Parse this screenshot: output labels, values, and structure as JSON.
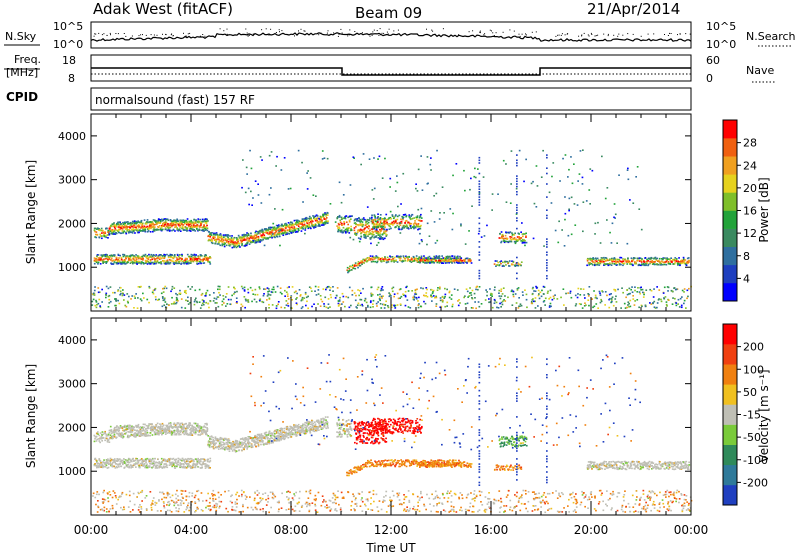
{
  "header": {
    "station": "Adak West (fitACF)",
    "beam": "Beam 09",
    "date": "21/Apr/2014"
  },
  "top_panels": {
    "nsky_label": "N.Sky",
    "nsearch_label": "N.Search",
    "noise_ticks": [
      "10^5",
      "10^0"
    ],
    "freq_label_1": "Freq.",
    "freq_label_2": "[MHz]",
    "freq_ticks": [
      "18",
      "8"
    ],
    "nave_label": "Nave",
    "nave_ticks": [
      "60",
      "0"
    ],
    "cpid_label": "CPID",
    "cpid_text": "normalsound (fast) 157 RF"
  },
  "chart_data": [
    {
      "type": "heatmap",
      "name": "power",
      "ylabel": "Slant Range [km]",
      "xlabel": "",
      "xlim": [
        0,
        24
      ],
      "ylim": [
        0,
        4500
      ],
      "yticks": [
        "4000",
        "3000",
        "2000",
        "1000"
      ],
      "colorbar": {
        "label": "Power [dB]",
        "ticks": [
          "28",
          "24",
          "20",
          "16",
          "12",
          "8",
          "4"
        ],
        "colors": [
          "#0000ff",
          "#1e3fbf",
          "#2f6f9f",
          "#3a8a60",
          "#22a33a",
          "#7fbf2a",
          "#e6d21e",
          "#f0a020",
          "#f06010",
          "#ff0000"
        ]
      }
    },
    {
      "type": "heatmap",
      "name": "velocity",
      "ylabel": "Slant Range [km]",
      "xlabel": "Time UT",
      "xlim": [
        0,
        24
      ],
      "ylim": [
        0,
        4500
      ],
      "yticks": [
        "4000",
        "3000",
        "2000",
        "1000"
      ],
      "xticks": [
        "00:00",
        "04:00",
        "08:00",
        "12:00",
        "16:00",
        "20:00",
        "00:00"
      ],
      "colorbar": {
        "label": "Velocity [m s⁻¹]",
        "ticks": [
          "200",
          "100",
          "50",
          "-15",
          "-50",
          "-100",
          "-200"
        ],
        "colors": [
          "#2040c0",
          "#2f7a9a",
          "#2f8a5a",
          "#7acb3a",
          "#bfbfb5",
          "#f0c020",
          "#f08010",
          "#f04010",
          "#ff0000"
        ]
      }
    }
  ]
}
